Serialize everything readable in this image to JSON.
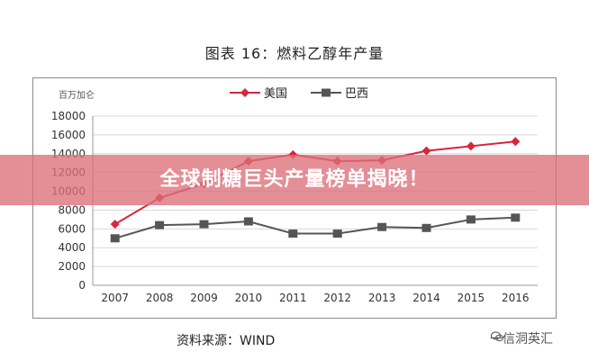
{
  "page_title": "图表 16：燃料乙醇年产量",
  "banner": {
    "text": "全球制糖巨头产量榜单揭晓！",
    "color": "#dc6e78"
  },
  "source_text": "资料来源：WIND",
  "watermark_text": "一信洞英汇",
  "chart_data": {
    "type": "line",
    "ylabel": "百万加仑",
    "categories": [
      "2007",
      "2008",
      "2009",
      "2010",
      "2011",
      "2012",
      "2013",
      "2014",
      "2015",
      "2016"
    ],
    "ylim": [
      0,
      18000
    ],
    "yticks": [
      0,
      2000,
      4000,
      6000,
      8000,
      10000,
      12000,
      14000,
      16000,
      18000
    ],
    "grid": true,
    "legend_position": "top",
    "series": [
      {
        "name": "美国",
        "color": "#d7263d",
        "marker": "diamond",
        "values": [
          6500,
          9300,
          10800,
          13200,
          13900,
          13200,
          13300,
          14300,
          14800,
          15300
        ]
      },
      {
        "name": "巴西",
        "color": "#555555",
        "marker": "square",
        "values": [
          5000,
          6400,
          6500,
          6800,
          5500,
          5500,
          6200,
          6100,
          7000,
          7200
        ]
      }
    ]
  }
}
